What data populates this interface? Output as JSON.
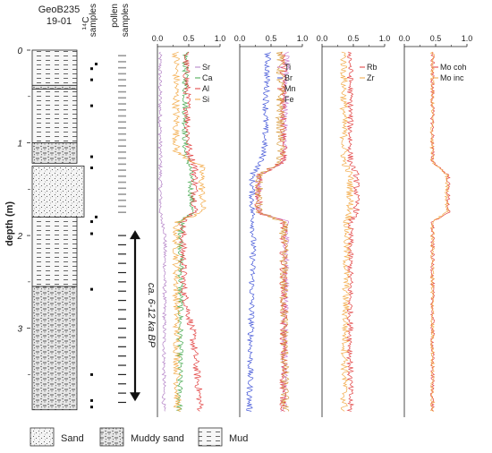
{
  "core": {
    "title_line1": "GeoB235",
    "title_line2": "19-01",
    "depth_label": "depth (m)",
    "depth_ticks": [
      "0",
      "1",
      "2",
      "3"
    ],
    "c14_label": "¹⁴C",
    "c14_sublabel": "samples",
    "pollen_label": "pollen",
    "pollen_sublabel": "samples",
    "age_label": "ca. 6-12 ka BP",
    "age_range_m": [
      2.0,
      3.75
    ],
    "c14_samples_m": [
      0.15,
      0.2,
      0.32,
      0.6,
      1.15,
      1.27,
      1.8,
      1.85,
      1.98,
      2.58,
      3.5,
      3.78,
      3.85
    ],
    "lithology": [
      {
        "type": "mud",
        "top": 0.0,
        "bottom": 0.38
      },
      {
        "type": "muddy-sand",
        "top": 0.38,
        "bottom": 0.42
      },
      {
        "type": "mud",
        "top": 0.42,
        "bottom": 1.0
      },
      {
        "type": "muddy-sand",
        "top": 1.0,
        "bottom": 1.22
      },
      {
        "type": "sand",
        "top": 1.25,
        "bottom": 1.8
      },
      {
        "type": "mud",
        "top": 1.8,
        "bottom": 2.55
      },
      {
        "type": "muddy-sand",
        "top": 2.55,
        "bottom": 3.88
      }
    ],
    "legend": [
      {
        "type": "sand",
        "label": "Sand"
      },
      {
        "type": "muddy-sand",
        "label": "Muddy sand"
      },
      {
        "type": "mud",
        "label": "Mud"
      }
    ]
  },
  "chart_data": [
    {
      "type": "line",
      "x_ticks": [
        "0.0",
        "0.5",
        "1.0"
      ],
      "xlim": [
        0,
        1
      ],
      "ylim": [
        0,
        3.95
      ],
      "series": [
        {
          "name": "Sr",
          "color": "#b07cc4"
        },
        {
          "name": "Ca",
          "color": "#3fa64a"
        },
        {
          "name": "Al",
          "color": "#e03a3a"
        },
        {
          "name": "Si",
          "color": "#f2a640"
        }
      ]
    },
    {
      "type": "line",
      "x_ticks": [
        "0.0",
        "0.5",
        "1.0"
      ],
      "xlim": [
        0,
        1
      ],
      "ylim": [
        0,
        3.95
      ],
      "series": [
        {
          "name": "Ti",
          "color": "#c978cf"
        },
        {
          "name": "Br",
          "color": "#3b4fd6"
        },
        {
          "name": "Mn",
          "color": "#e04040"
        },
        {
          "name": "Fe",
          "color": "#d69a3a"
        }
      ]
    },
    {
      "type": "line",
      "x_ticks": [
        "0.0",
        "0.5",
        "1.0"
      ],
      "xlim": [
        0,
        1
      ],
      "ylim": [
        0,
        3.95
      ],
      "series": [
        {
          "name": "Rb",
          "color": "#e03a3a"
        },
        {
          "name": "Zr",
          "color": "#f2a640"
        }
      ]
    },
    {
      "type": "line",
      "x_ticks": [
        "0.0",
        "0.5",
        "1.0"
      ],
      "xlim": [
        0,
        1
      ],
      "ylim": [
        0,
        3.95
      ],
      "series": [
        {
          "name": "Mo coh",
          "color": "#e03a3a"
        },
        {
          "name": "Mo inc",
          "color": "#f2a640"
        }
      ]
    }
  ]
}
